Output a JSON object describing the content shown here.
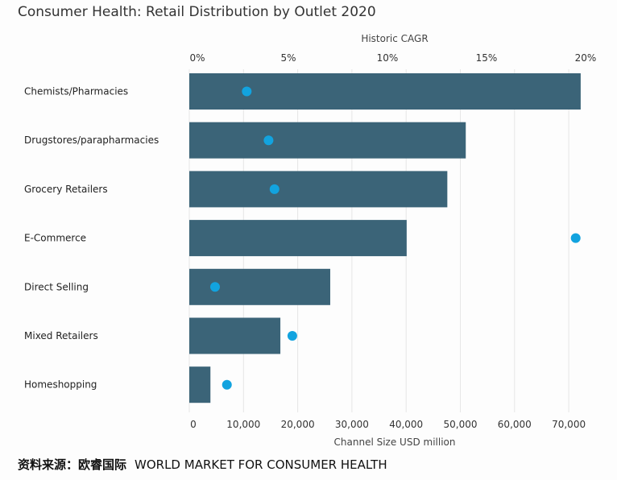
{
  "chart_data": {
    "type": "bar",
    "orientation": "horizontal",
    "title": "Consumer Health: Retail Distribution by Outlet 2020",
    "categories": [
      "Chemists/Pharmacies",
      "Drugstores/parapharmacies",
      "Grocery Retailers",
      "E-Commerce",
      "Direct Selling",
      "Mixed Retailers",
      "Homeshopping"
    ],
    "series": [
      {
        "name": "Channel Size USD million",
        "type": "bar",
        "axis": "bottom",
        "color": "#3b6478",
        "values": [
          72200,
          51000,
          47600,
          40100,
          26000,
          16800,
          3900
        ]
      },
      {
        "name": "Historic CAGR",
        "type": "scatter",
        "axis": "top",
        "unit": "%",
        "color": "#12a3df",
        "values": [
          2.9,
          4.0,
          4.3,
          19.5,
          1.3,
          5.2,
          1.9
        ]
      }
    ],
    "xlabel_bottom": "Channel Size USD million",
    "xlabel_top": "Historic CAGR",
    "xlim_bottom": [
      0,
      72500
    ],
    "xlim_top": [
      0,
      20
    ],
    "ticks_bottom": [
      "0",
      "10,000",
      "20,000",
      "30,000",
      "40,000",
      "50,000",
      "60,000",
      "70,000"
    ],
    "ticks_bottom_values": [
      0,
      10000,
      20000,
      30000,
      40000,
      50000,
      60000,
      70000
    ],
    "ticks_top": [
      "0%",
      "5%",
      "10%",
      "15%",
      "20%"
    ],
    "ticks_top_values": [
      0,
      5,
      10,
      15,
      20
    ],
    "grid": "vertical"
  },
  "source": {
    "cn": "资料来源：欧睿国际",
    "en": "WORLD MARKET FOR CONSUMER HEALTH"
  }
}
